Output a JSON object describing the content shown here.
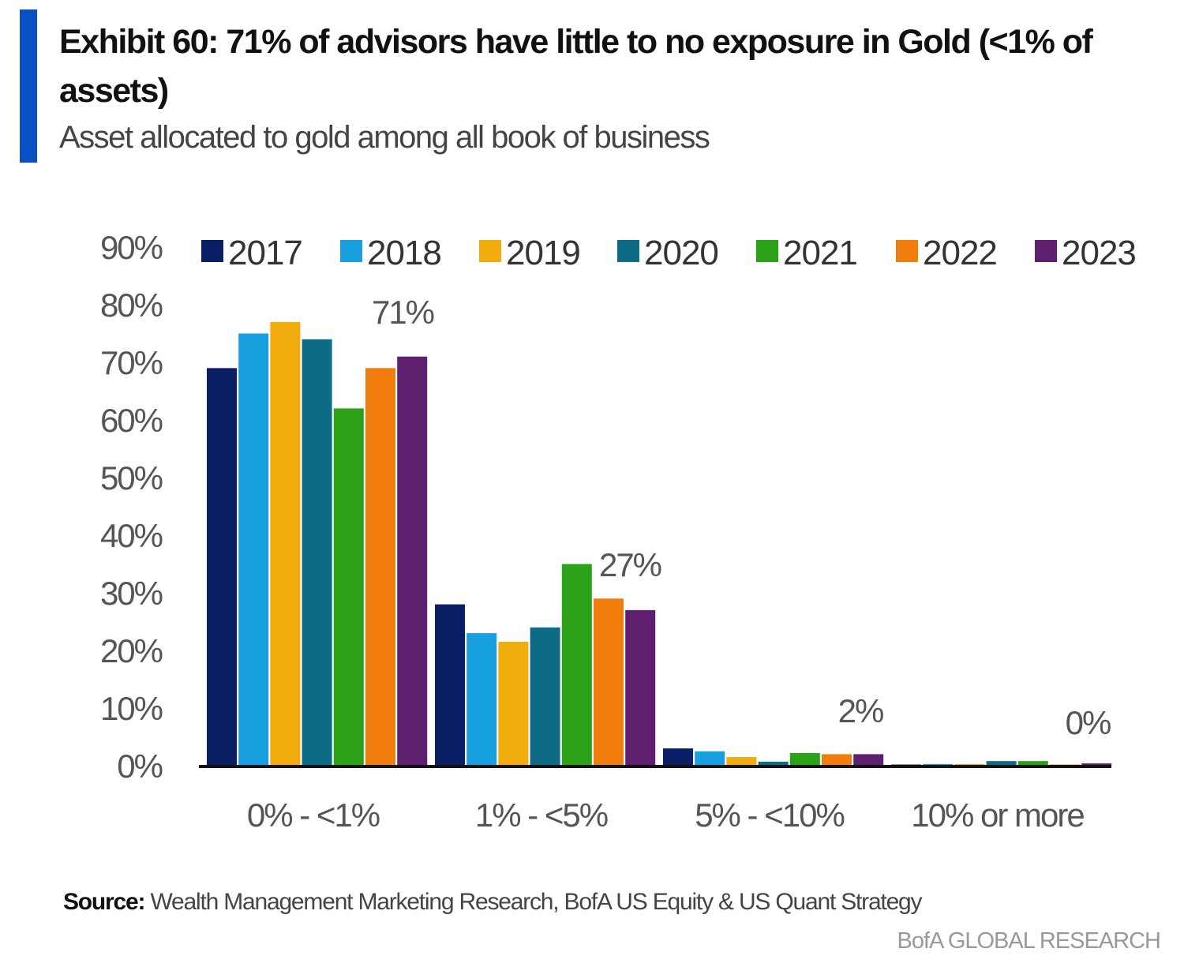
{
  "header": {
    "title": "Exhibit 60: 71% of advisors have little to no exposure in Gold (<1% of assets)",
    "subtitle": "Asset allocated to gold among all book of business",
    "accent_color": "#0b4fc4"
  },
  "footer": {
    "source_label": "Source:",
    "source_text": "Wealth Management Marketing Research, BofA US Equity & US Quant Strategy",
    "brand": "BofA GLOBAL RESEARCH"
  },
  "chart_data": {
    "type": "bar",
    "title": "Exhibit 60: 71% of advisors have little to no exposure in Gold (<1% of assets)",
    "subtitle": "Asset allocated to gold among all book of business",
    "xlabel": "",
    "ylabel": "",
    "ylim": [
      0,
      90
    ],
    "yticks": [
      0,
      10,
      20,
      30,
      40,
      50,
      60,
      70,
      80,
      90
    ],
    "ytick_labels": [
      "0%",
      "10%",
      "20%",
      "30%",
      "40%",
      "50%",
      "60%",
      "70%",
      "80%",
      "90%"
    ],
    "grid": false,
    "legend_position": "top",
    "categories": [
      "0% - <1%",
      "1% - <5%",
      "5% - <10%",
      "10% or more"
    ],
    "series": [
      {
        "name": "2017",
        "color": "#0a1f66",
        "values": [
          69,
          28,
          3.0,
          0.2
        ]
      },
      {
        "name": "2018",
        "color": "#179fe0",
        "values": [
          75,
          23,
          2.5,
          0.3
        ]
      },
      {
        "name": "2019",
        "color": "#f2ab0c",
        "values": [
          77,
          21.5,
          1.5,
          0.3
        ]
      },
      {
        "name": "2020",
        "color": "#0e6b86",
        "values": [
          74,
          24,
          0.7,
          0.8
        ]
      },
      {
        "name": "2021",
        "color": "#2aa116",
        "values": [
          62,
          35,
          2.2,
          0.8
        ]
      },
      {
        "name": "2022",
        "color": "#f07d0c",
        "values": [
          69,
          29,
          2.0,
          0.1
        ]
      },
      {
        "name": "2023",
        "color": "#5e1f6e",
        "values": [
          71,
          27,
          2.0,
          0.4
        ]
      }
    ],
    "annotations": [
      {
        "category": "0% - <1%",
        "series": "2023",
        "text": "71%"
      },
      {
        "category": "1% - <5%",
        "series": "2023",
        "text": "27%"
      },
      {
        "category": "5% - <10%",
        "series": "2023",
        "text": "2%"
      },
      {
        "category": "10% or more",
        "series": "2023",
        "text": "0%"
      }
    ]
  }
}
